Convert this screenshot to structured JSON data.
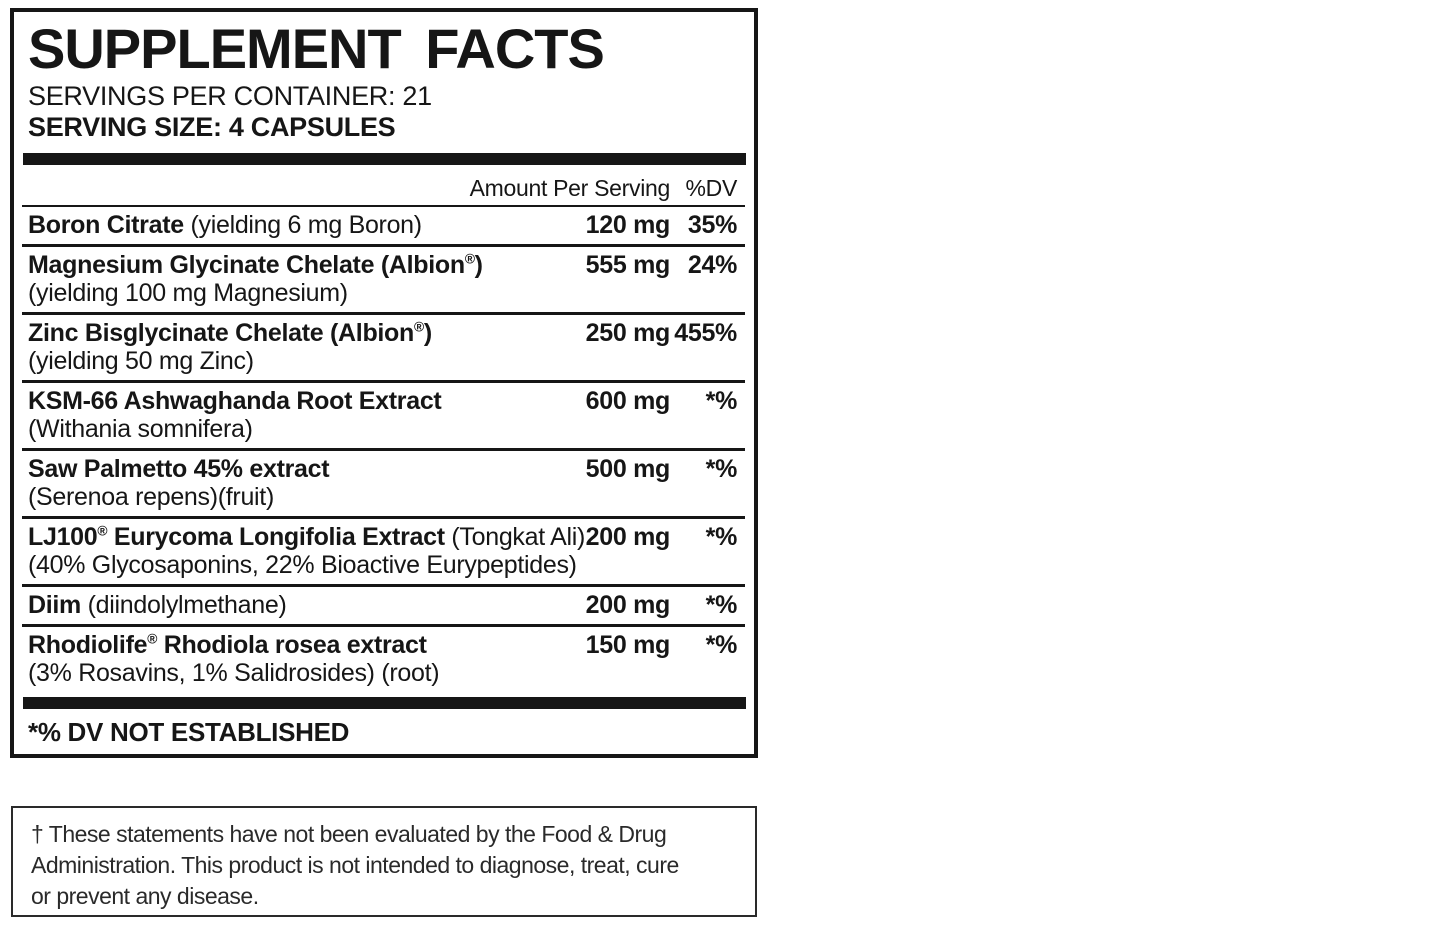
{
  "label": {
    "title": "SUPPLEMENT FACTS",
    "servings_per_container": "SERVINGS PER CONTAINER: 21",
    "serving_size": "SERVING SIZE: 4 CAPSULES",
    "header": {
      "amount": "Amount Per Serving",
      "dv": "%DV"
    },
    "rows": [
      {
        "name": "Boron Citrate",
        "note": "(yielding 6 mg Boron)",
        "subline": "",
        "amount": "120 mg",
        "dv": "35%"
      },
      {
        "name": "Magnesium Glycinate Chelate (Albion®)",
        "note": "",
        "subline": "(yielding 100 mg Magnesium)",
        "amount": "555 mg",
        "dv": "24%"
      },
      {
        "name": "Zinc Bisglycinate Chelate (Albion®)",
        "note": "",
        "subline": "(yielding 50 mg Zinc)",
        "amount": "250 mg",
        "dv": "455%"
      },
      {
        "name": "KSM-66 Ashwaghanda Root Extract",
        "note": "",
        "subline": "(Withania somnifera)",
        "amount": "600 mg",
        "dv": "*%"
      },
      {
        "name": "Saw Palmetto 45% extract",
        "note": "",
        "subline": "(Serenoa repens)(fruit)",
        "amount": "500 mg",
        "dv": "*%"
      },
      {
        "name": "LJ100® Eurycoma Longifolia Extract",
        "note": "(Tongkat Ali)",
        "subline": "(40% Glycosaponins, 22% Bioactive Eurypeptides)",
        "amount": "200 mg",
        "dv": "*%"
      },
      {
        "name": "Diim",
        "note": "(diindolylmethane)",
        "subline": "",
        "amount": "200 mg",
        "dv": "*%"
      },
      {
        "name": "Rhodiolife® Rhodiola rosea extract",
        "note": "",
        "subline": "(3% Rosavins, 1% Salidrosides) (root)",
        "amount": "150 mg",
        "dv": "*%"
      }
    ],
    "footnote": "*% DV NOT ESTABLISHED"
  },
  "disclaimer": {
    "lines": [
      "† These statements have not been evaluated by the Food & Drug",
      "Administration. This product is not intended to diagnose, treat, cure",
      "or prevent any disease."
    ]
  },
  "colors": {
    "ink": "#161616",
    "background": "#ffffff"
  }
}
